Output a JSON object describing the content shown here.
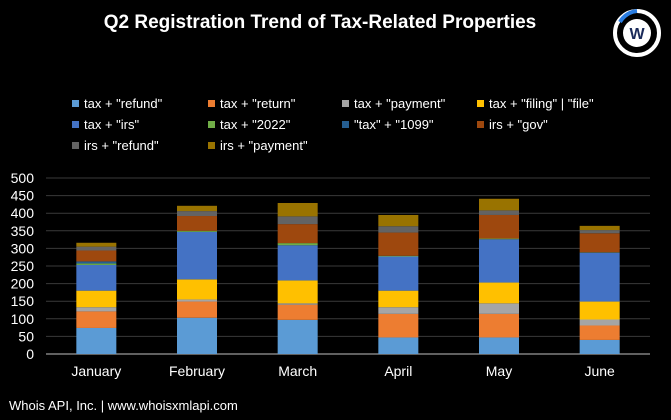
{
  "chart_data": {
    "type": "bar",
    "stacked": true,
    "title": "Q2 Registration  Trend of Tax-Related Properties",
    "categories": [
      "January",
      "February",
      "March",
      "April",
      "May",
      "June"
    ],
    "ylim": [
      0,
      500
    ],
    "yticks": [
      "0",
      "50",
      "100",
      "150",
      "200",
      "250",
      "300",
      "350",
      "400",
      "450",
      "500"
    ],
    "grid": true,
    "legend_position": "top",
    "series": [
      {
        "name": "tax + \"refund\"",
        "color": "#5b9bd5",
        "values": [
          74,
          103,
          97,
          47,
          47,
          40
        ]
      },
      {
        "name": "tax + \"return\"",
        "color": "#ed7d31",
        "values": [
          47,
          46,
          43,
          67,
          67,
          41
        ]
      },
      {
        "name": "tax + \"payment\"",
        "color": "#a5a5a5",
        "values": [
          12,
          6,
          4,
          19,
          30,
          17
        ]
      },
      {
        "name": "tax + \"filing\" | \"file\"",
        "color": "#ffc000",
        "values": [
          47,
          57,
          65,
          47,
          59,
          51
        ]
      },
      {
        "name": "tax + \"irs\"",
        "color": "#4472c4",
        "values": [
          73,
          135,
          100,
          97,
          123,
          139
        ]
      },
      {
        "name": "tax + \"2022\"",
        "color": "#70ad47",
        "values": [
          4,
          3,
          6,
          2,
          2,
          1
        ]
      },
      {
        "name": "\"tax\" + \"1099\"",
        "color": "#255e91",
        "values": [
          6,
          0,
          0,
          0,
          0,
          0
        ]
      },
      {
        "name": "irs + \"gov\"",
        "color": "#9e480e",
        "values": [
          31,
          42,
          54,
          66,
          67,
          54
        ]
      },
      {
        "name": "irs + \"refund\"",
        "color": "#636363",
        "values": [
          11,
          14,
          22,
          18,
          13,
          9
        ]
      },
      {
        "name": "irs + \"payment\"",
        "color": "#997300",
        "values": [
          11,
          15,
          38,
          32,
          33,
          12
        ]
      }
    ]
  },
  "logo_text": "W",
  "footer": "Whois API, Inc. | www.whoisxmlapi.com"
}
